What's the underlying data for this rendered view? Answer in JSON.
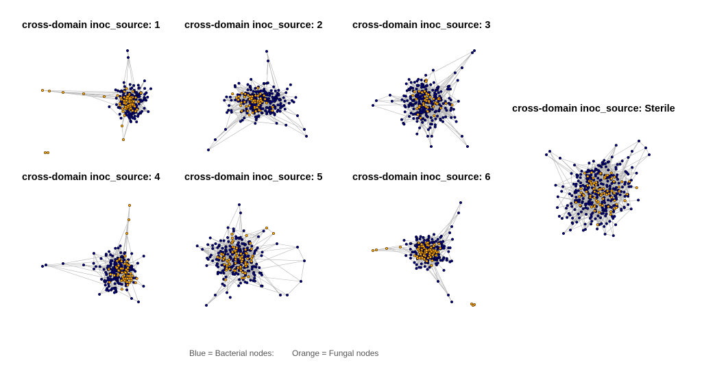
{
  "node_colors": {
    "bacterial": "#000080",
    "fungal": "#FFA500",
    "edge": "#B3B3B3",
    "outline": "#000000"
  },
  "panels": [
    {
      "title": "cross-domain inoc_source: 1"
    },
    {
      "title": "cross-domain inoc_source: 2"
    },
    {
      "title": "cross-domain inoc_source: 3"
    },
    {
      "title": "cross-domain inoc_source: 4"
    },
    {
      "title": "cross-domain inoc_source: 5"
    },
    {
      "title": "cross-domain inoc_source: 6"
    },
    {
      "title": "cross-domain inoc_source: Sterile"
    }
  ],
  "caption": {
    "bacterial": "Blue = Bacterial nodes:",
    "fungal": "Orange = Fungal nodes"
  }
}
